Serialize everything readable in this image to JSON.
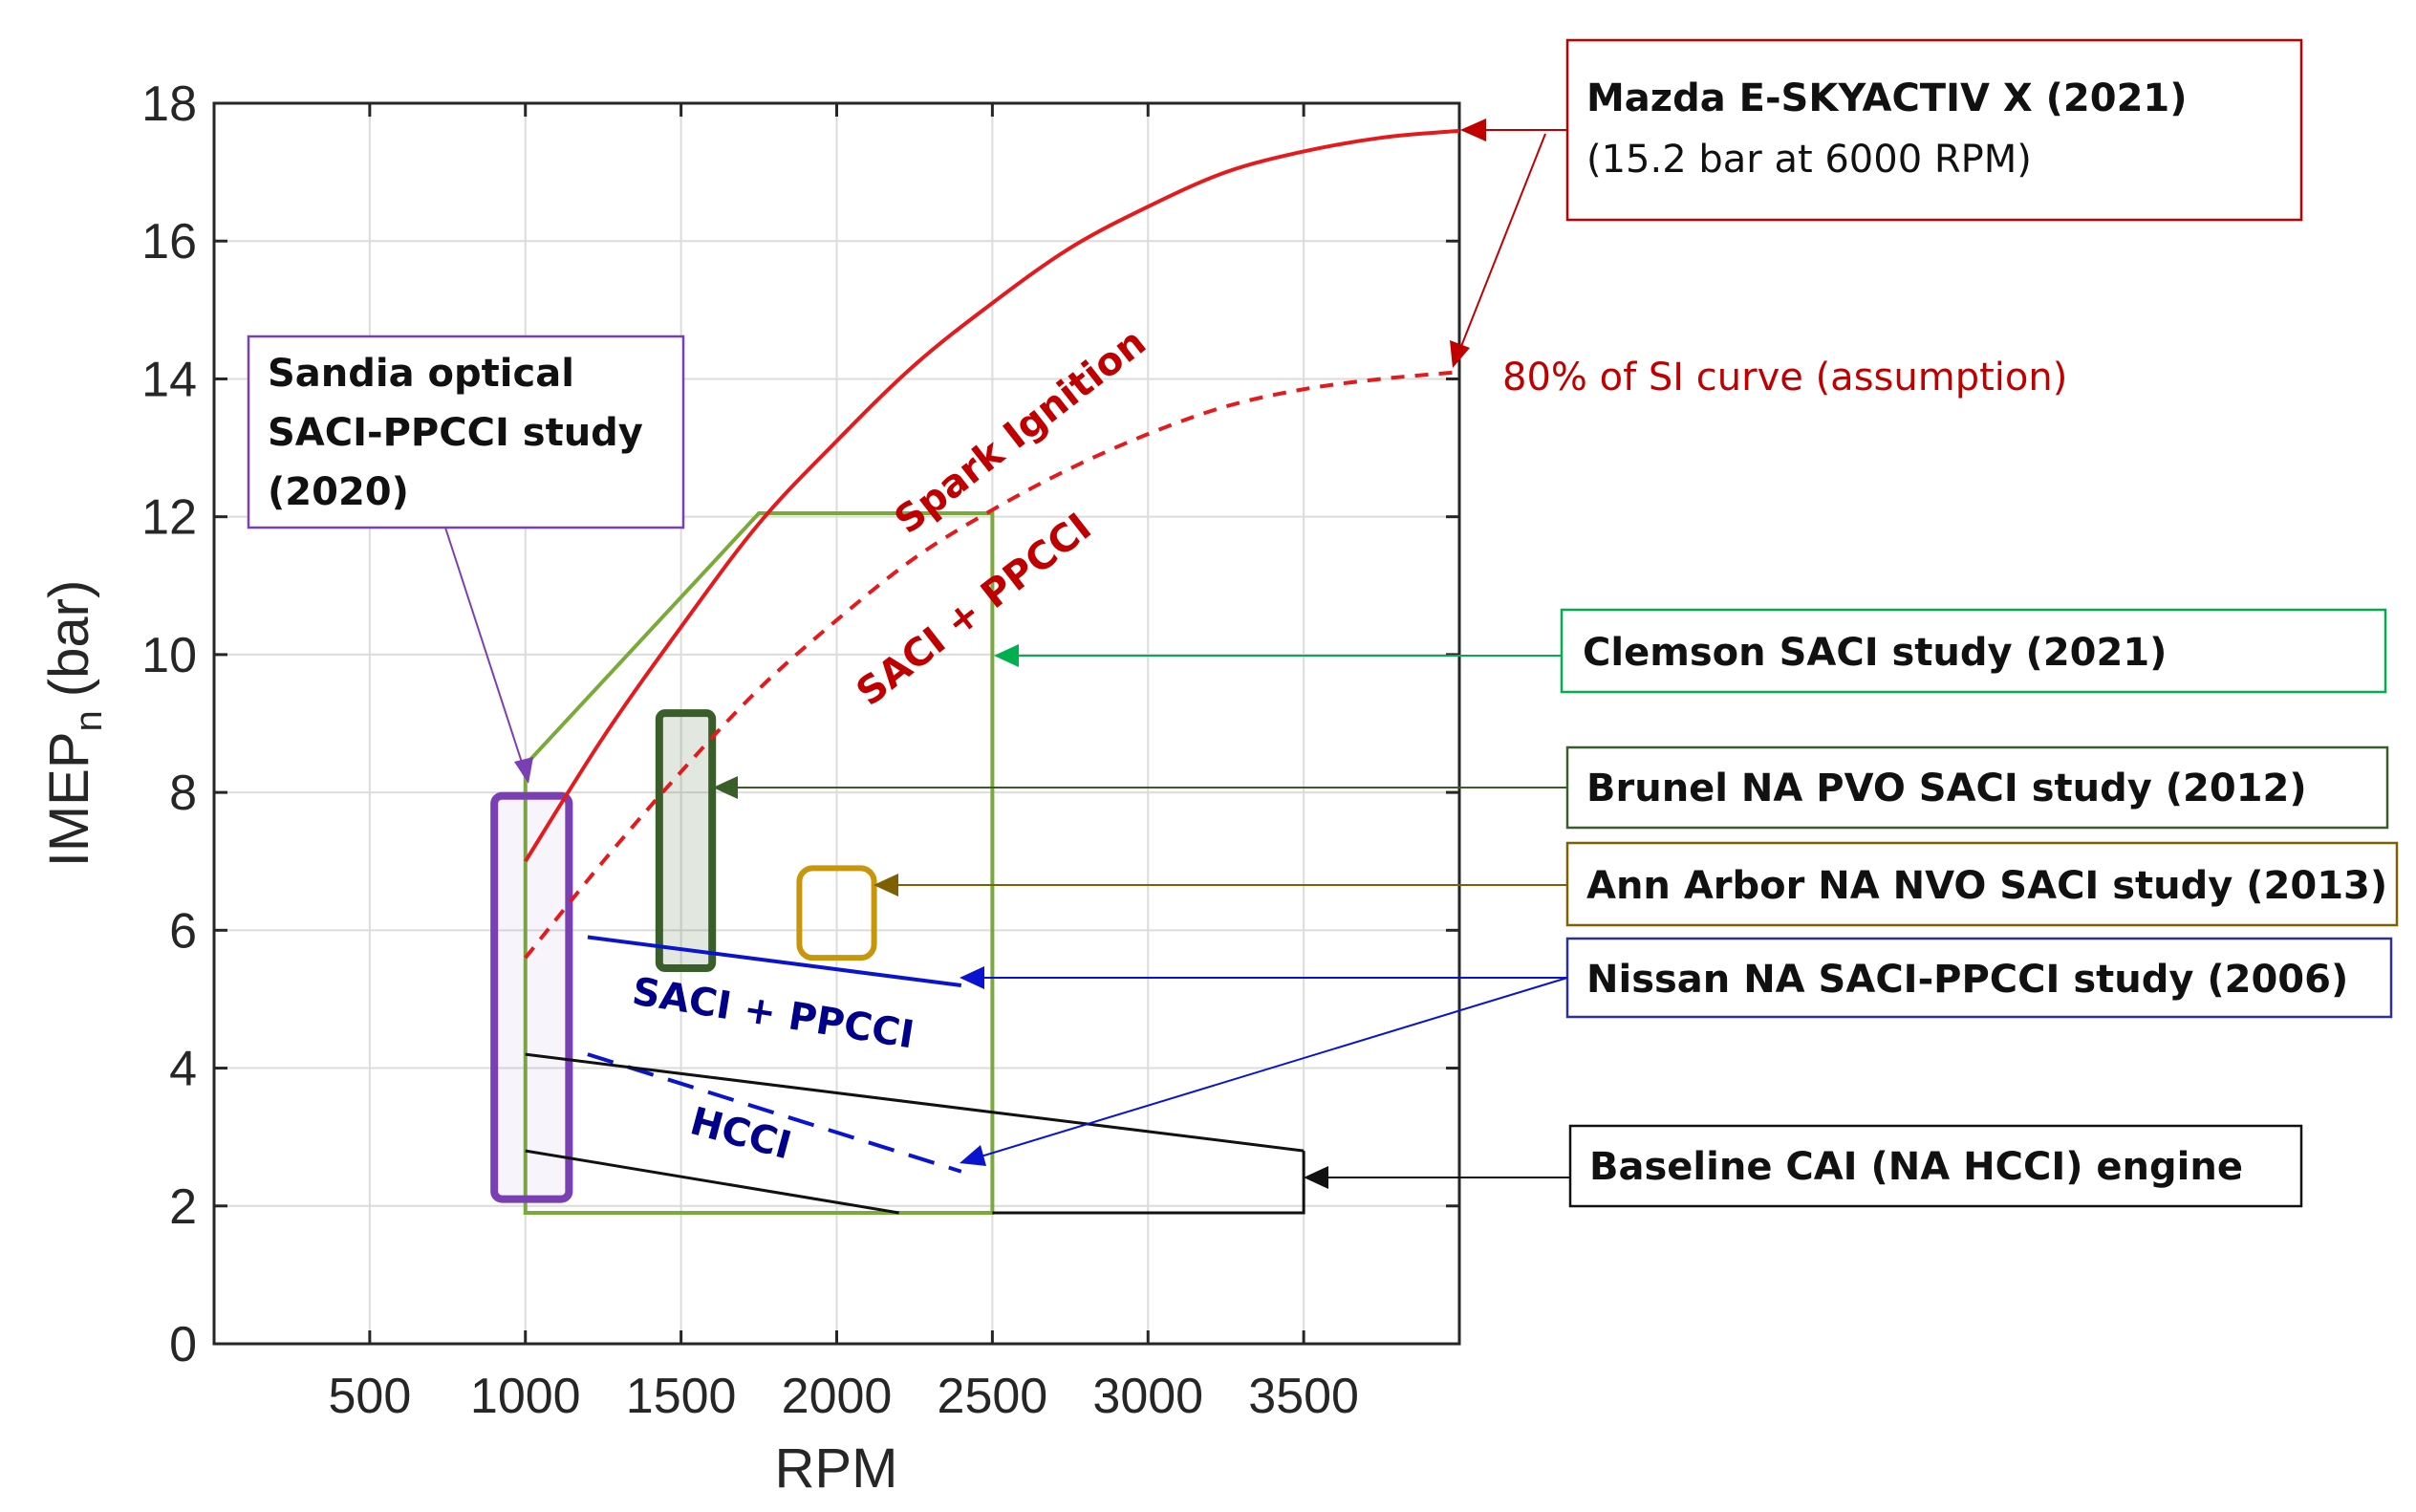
{
  "chart_data": {
    "type": "line",
    "title": "",
    "xlabel": "RPM",
    "ylabel": "IMEP",
    "ylabel_sub": "n",
    "ylabel_unit": "(bar)",
    "xlim": [
      0,
      4000
    ],
    "ylim": [
      0,
      18
    ],
    "xticks": [
      500,
      1000,
      1500,
      2000,
      2500,
      3000,
      3500
    ],
    "yticks": [
      0,
      2,
      4,
      6,
      8,
      10,
      12,
      14,
      16,
      18
    ],
    "grid": true,
    "series": [
      {
        "name": "Spark Ignition",
        "style": "solid",
        "color": "#e41a1c",
        "x": [
          1000,
          1250,
          1500,
          1750,
          2000,
          2250,
          2500,
          2750,
          3000,
          3250,
          3500,
          3750,
          4000
        ],
        "y": [
          7.0,
          8.8,
          10.4,
          11.9,
          13.1,
          14.2,
          15.1,
          15.9,
          16.5,
          17.0,
          17.3,
          17.5,
          17.6
        ]
      },
      {
        "name": "SACI + PPCCI (80% of SI)",
        "style": "dashed",
        "color": "#e41a1c",
        "x": [
          1000,
          1250,
          1500,
          1750,
          2000,
          2250,
          2500,
          2750,
          3000,
          3250,
          3500,
          3750,
          4000
        ],
        "y": [
          5.6,
          7.0,
          8.3,
          9.5,
          10.5,
          11.4,
          12.1,
          12.7,
          13.2,
          13.6,
          13.85,
          14.0,
          14.1
        ]
      },
      {
        "name": "Nissan SACI + PPCCI",
        "style": "solid",
        "color": "#0a14d0",
        "x": [
          1200,
          2400
        ],
        "y": [
          5.9,
          5.2
        ]
      },
      {
        "name": "Nissan HCCI",
        "style": "dashed",
        "color": "#0a14d0",
        "x": [
          1200,
          2400
        ],
        "y": [
          4.2,
          2.5
        ]
      },
      {
        "name": "Baseline CAI upper",
        "style": "solid",
        "color": "#111111",
        "x": [
          1000,
          3500
        ],
        "y": [
          4.2,
          2.8
        ]
      },
      {
        "name": "Baseline CAI lower",
        "style": "solid",
        "color": "#111111",
        "x": [
          1000,
          2200
        ],
        "y": [
          2.8,
          1.9
        ]
      },
      {
        "name": "Baseline CAI boundary",
        "style": "solid",
        "color": "#111111",
        "x": [
          2500,
          3500,
          3500
        ],
        "y": [
          1.9,
          1.9,
          2.8
        ]
      }
    ],
    "regions": [
      {
        "name": "Clemson SACI study (2021)",
        "color": "#7aab3a",
        "x": [
          1000,
          1000,
          1750,
          2500,
          2500
        ],
        "y": [
          1.9,
          8.4,
          12.05,
          12.05,
          1.9
        ]
      },
      {
        "name": "Sandia optical SACI-PPCCI study (2020)",
        "color": "#7b3fb5",
        "x": [
          900,
          1140
        ],
        "y": [
          2.1,
          7.95
        ]
      },
      {
        "name": "Brunel NA PVO SACI study (2012)",
        "color": "#3a5e2a",
        "x": [
          1430,
          1600
        ],
        "y": [
          5.45,
          9.15
        ]
      },
      {
        "name": "Ann Arbor NA NVO SACI study (2013)",
        "color": "#c8960c",
        "x": [
          1880,
          2120
        ],
        "y": [
          5.6,
          6.9
        ]
      }
    ],
    "curve_labels": {
      "si": "Spark Ignition",
      "saci_red": "SACI + PPCCI",
      "saci_blue": "SACI + PPCCI",
      "hcci": "HCCI"
    },
    "annotations": {
      "mazda_title": "Mazda E-SKYACTIV X (2021)",
      "mazda_sub": "(15.2 bar at 6000 RPM)",
      "assumption": "80% of SI curve (assumption)",
      "sandia_line1": "Sandia optical",
      "sandia_line2": "SACI-PPCCI study",
      "sandia_line3": "(2020)",
      "clemson": "Clemson SACI study (2021)",
      "brunel": "Brunel NA PVO SACI study (2012)",
      "ann_arbor": "Ann Arbor NA NVO SACI study (2013)",
      "nissan": "Nissan NA SACI-PPCCI study (2006)",
      "baseline": "Baseline CAI (NA HCCI) engine"
    },
    "colors": {
      "red": "#e41a1c",
      "dark_red": "#c00000",
      "blue": "#0a14d0",
      "dark_blue": "#00008b",
      "green": "#7aab3a",
      "green_box": "#00b050",
      "dark_green": "#3a5e2a",
      "gold": "#c8960c",
      "gold_box": "#7f6000",
      "purple": "#7b3fb5",
      "nissan_box": "#2e3192"
    }
  }
}
